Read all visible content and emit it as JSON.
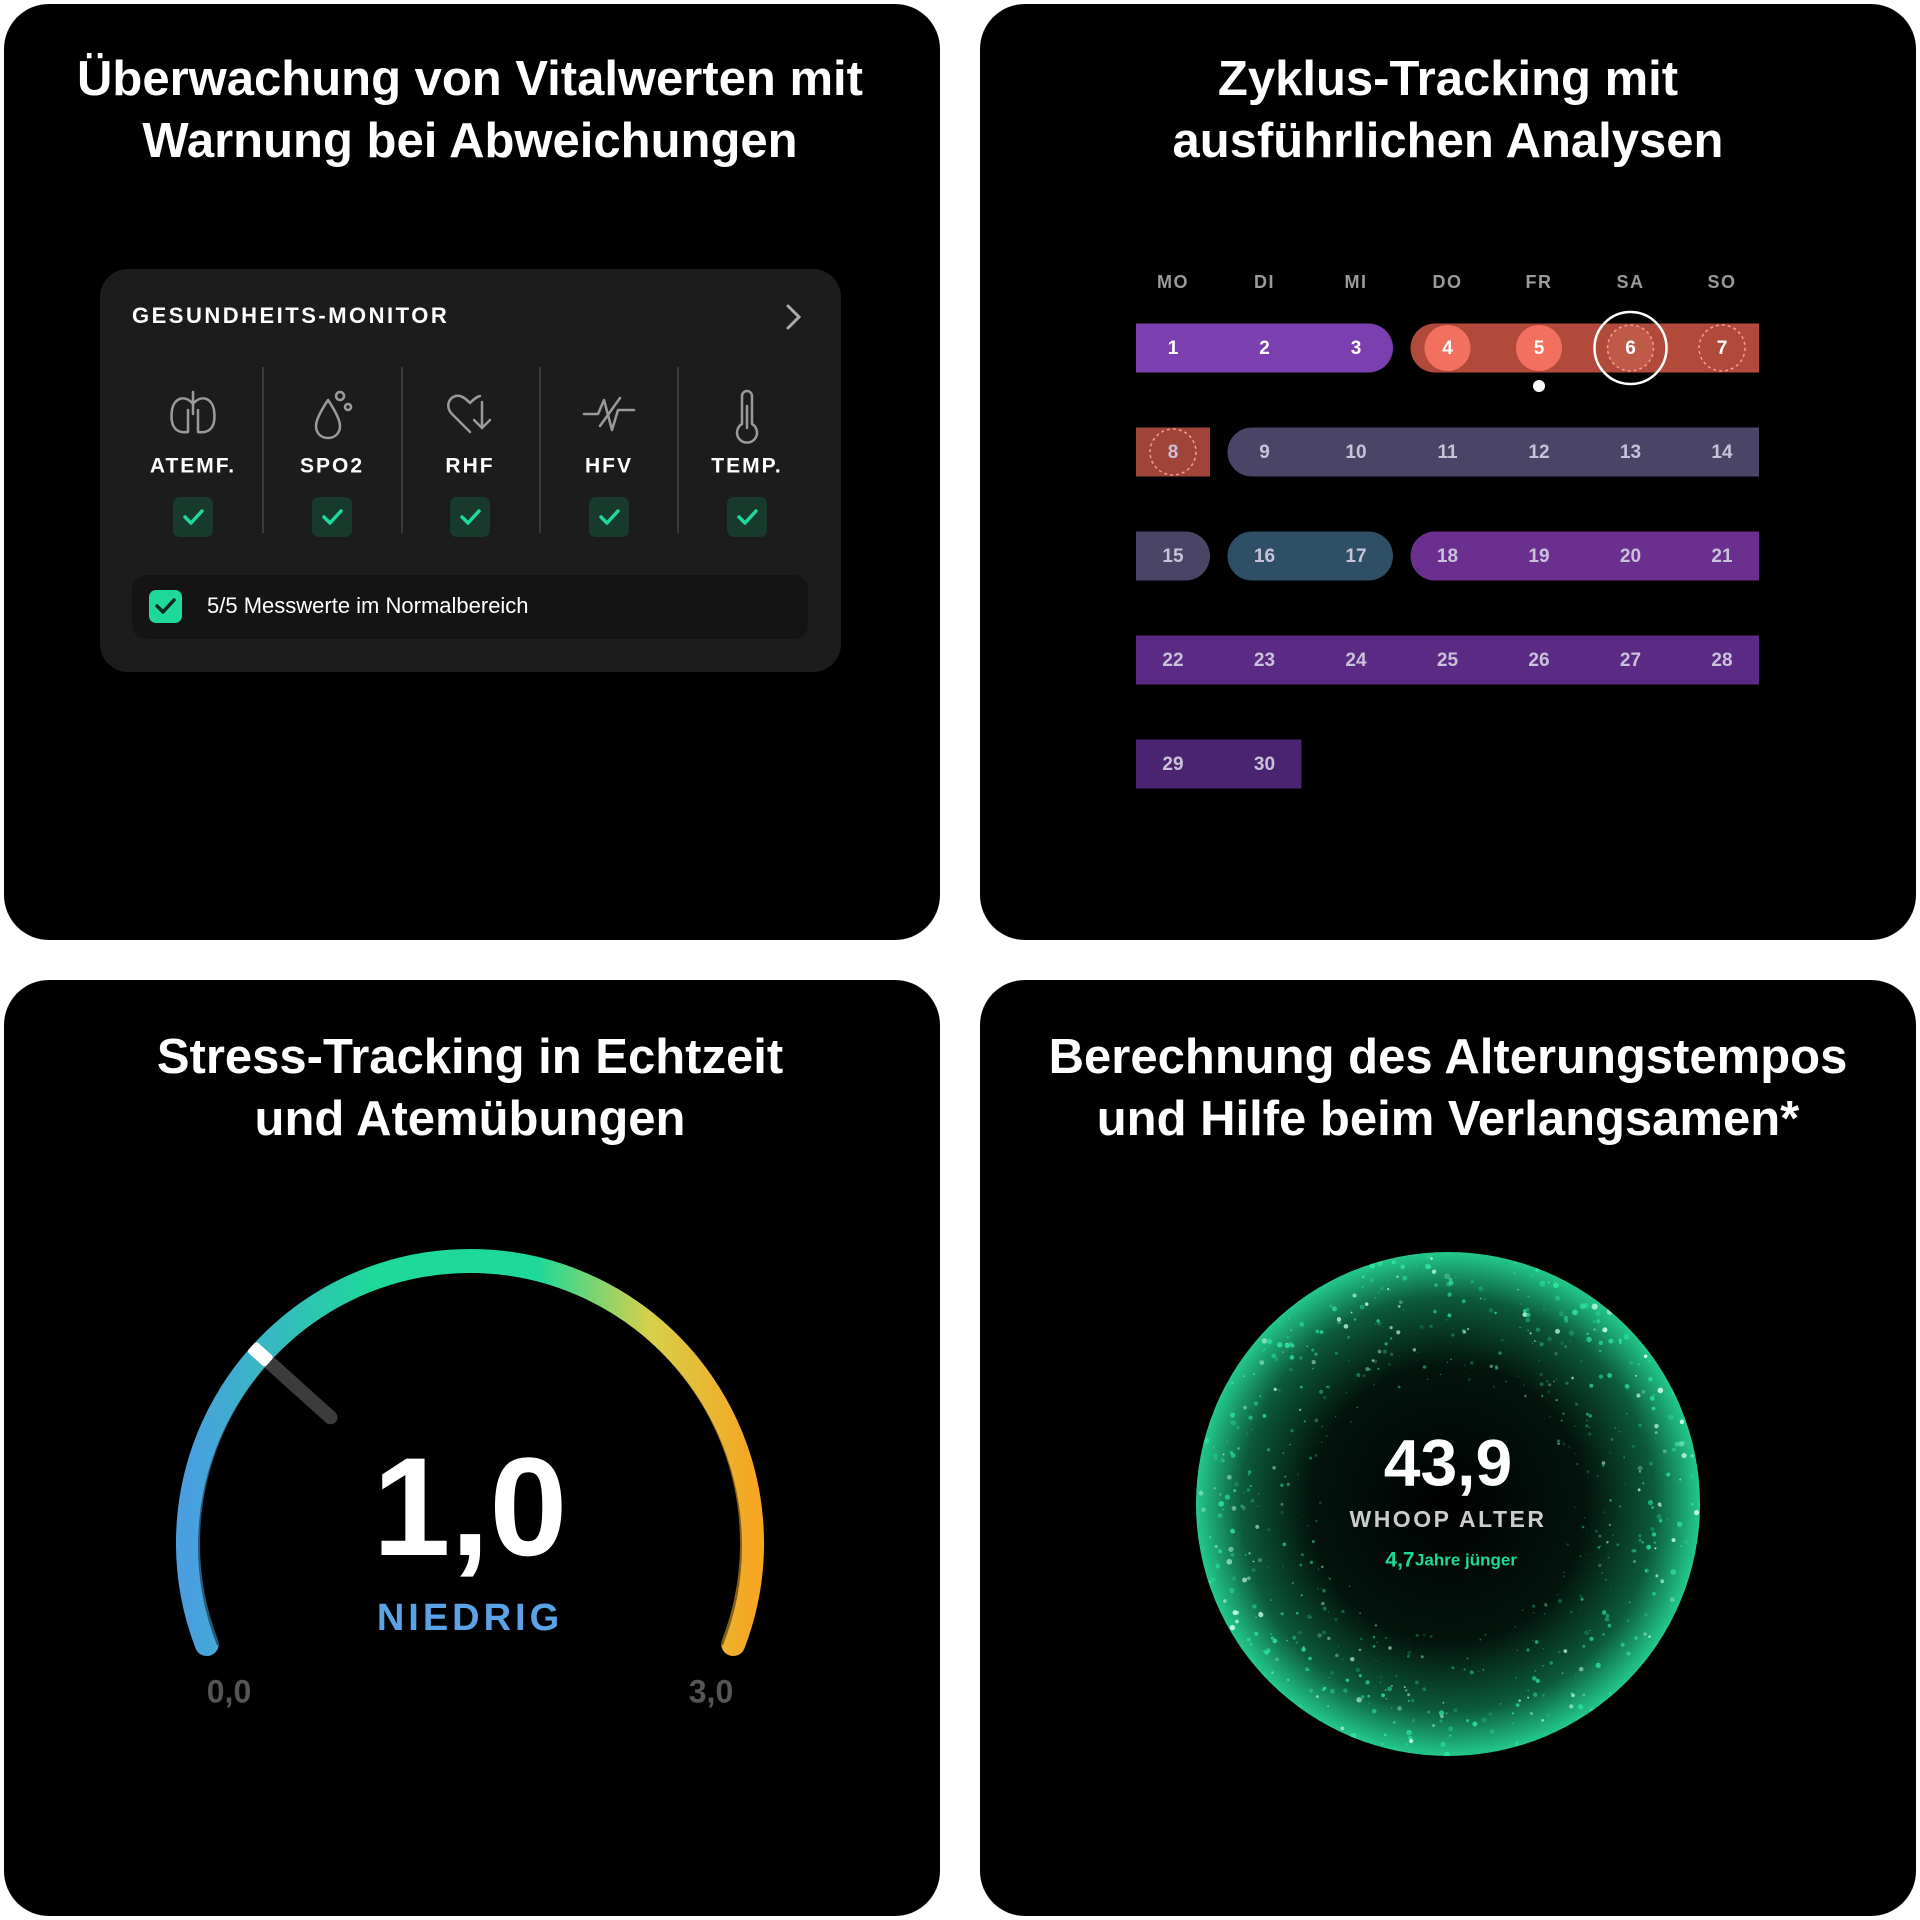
{
  "panels": [
    {
      "title": [
        "Überwachung von Vitalwerten mit",
        "Warnung bei Abweichungen"
      ],
      "card": {
        "heading": "GESUNDHEITS-MONITOR",
        "vitals": [
          "ATEMF.",
          "SPO2",
          "RHF",
          "HFV",
          "TEMP."
        ],
        "summary": "5/5 Messwerte im Normalbereich"
      }
    },
    {
      "title": [
        "Zyklus-Tracking mit",
        "ausführlichen Analysen"
      ],
      "weekdays": [
        "MO",
        "DI",
        "MI",
        "DO",
        "FR",
        "SA",
        "SO"
      ],
      "days": [
        "1",
        "2",
        "3",
        "4",
        "5",
        "6",
        "7",
        "8",
        "9",
        "10",
        "11",
        "12",
        "13",
        "14",
        "15",
        "16",
        "17",
        "18",
        "19",
        "20",
        "21",
        "22",
        "23",
        "24",
        "25",
        "26",
        "27",
        "28",
        "29",
        "30"
      ]
    },
    {
      "title": [
        "Stress-Tracking in Echtzeit",
        "und Atemübungen"
      ],
      "score": "1,0",
      "level": "NIEDRIG",
      "min": "0,0",
      "max": "3,0"
    },
    {
      "title": [
        "Berechnung des Alterungstempos",
        "und Hilfe beim Verlangsamen*"
      ],
      "age": "43,9",
      "label": "WHOOP ALTER",
      "difference": "4,7",
      "difference_text": "Jahre jünger"
    }
  ]
}
